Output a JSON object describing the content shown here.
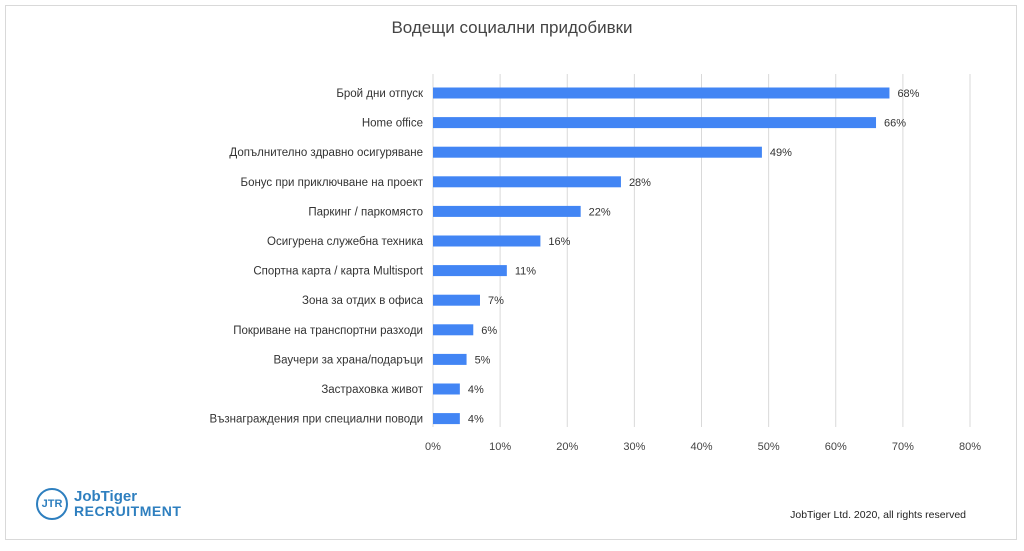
{
  "colors": {
    "bar": "#4285f4",
    "grid": "#d9d9d9",
    "text": "#333333",
    "brand": "#2e7fbf"
  },
  "chart_data": {
    "type": "bar",
    "orientation": "horizontal",
    "title": "Водещи социални придобивки",
    "xlabel": "",
    "ylabel": "",
    "categories": [
      "Брой дни отпуск",
      "Home office",
      "Допълнително здравно осигуряване",
      "Бонус при приключване на проект",
      "Паркинг / паркомясто",
      "Осигурена служебна техника",
      "Спортна карта / карта Multisport",
      "Зона за отдих в офиса",
      "Покриване на транспортни разходи",
      "Ваучери за храна/подаръци",
      "Застраховка живот",
      "Възнаграждения при специални поводи"
    ],
    "values": [
      68,
      66,
      49,
      28,
      22,
      16,
      11,
      7,
      6,
      5,
      4,
      4
    ],
    "value_labels": [
      "68%",
      "66%",
      "49%",
      "28%",
      "22%",
      "16%",
      "11%",
      "7%",
      "6%",
      "5%",
      "4%",
      "4%"
    ],
    "xlim": [
      0,
      80
    ],
    "xticks": [
      0,
      10,
      20,
      30,
      40,
      50,
      60,
      70,
      80
    ],
    "xtick_labels": [
      "0%",
      "10%",
      "20%",
      "30%",
      "40%",
      "50%",
      "60%",
      "70%",
      "80%"
    ],
    "grid": true,
    "legend": "none"
  },
  "footer": {
    "logo_mark": "JTR",
    "logo_line1": "JobTiger",
    "logo_line2": "RECRUITMENT",
    "copyright": "JobTiger Ltd. 2020, all rights reserved"
  }
}
